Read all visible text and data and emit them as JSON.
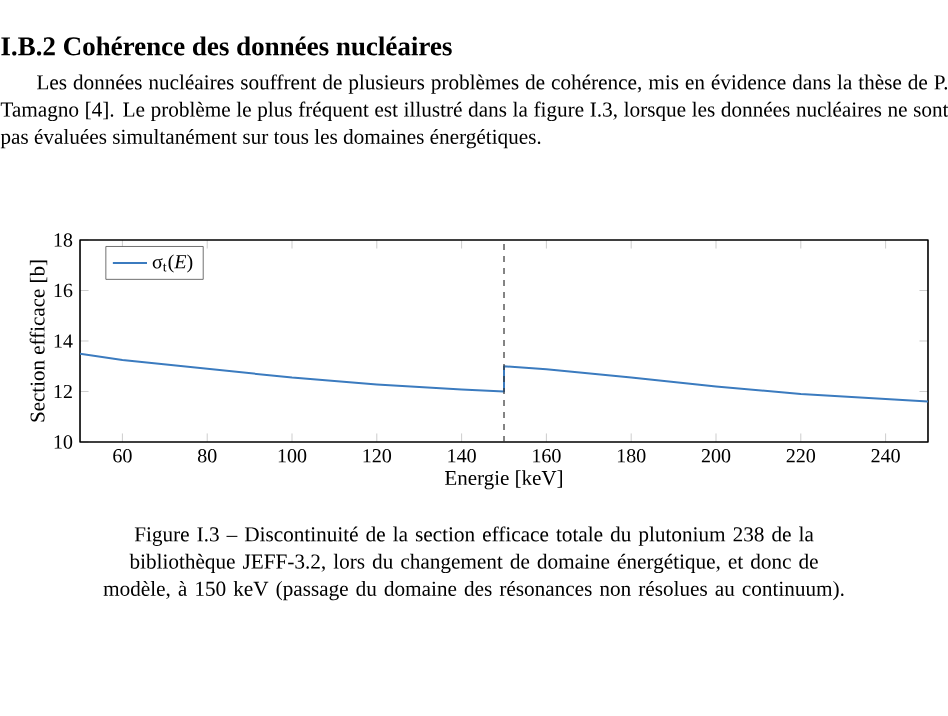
{
  "chart_data": {
    "type": "line",
    "title": "I.B.2    Cohérence des données nucléaires",
    "subtitle": "Les données nucléaires souffrent de plusieurs problèmes de cohérence, mis en évidence dans la thèse de P. Tamagno [4]. Le problème le plus fréquent est illustré dans la figure I.3, lorsque les données nucléaires ne sont pas évaluées simultanément sur tous les domaines énergétiques.",
    "xlabel": "Energie [keV]",
    "ylabel": "Section efficace [b]",
    "annotations": [
      "Figure I.3 – Discontinuité de la section efficace totale du plutonium 238 de la bibliothèque JEFF-3.2, lors du changement de domaine énergétique, et donc de modèle, à 150 keV (passage du domaine des résonances non résolues au continuum)."
    ],
    "x": [
      50,
      60,
      80,
      100,
      120,
      140,
      150,
      150,
      160,
      180,
      200,
      220,
      240,
      250
    ],
    "series": [
      {
        "name": "σ$_{t}$(*E*)",
        "color": "#3b7bbf",
        "values": [
          13.5,
          13.25,
          12.9,
          12.55,
          12.28,
          12.08,
          12.0,
          13.0,
          12.88,
          12.55,
          12.2,
          11.9,
          11.7,
          11.6
        ]
      }
    ],
    "xlim": [
      50,
      250
    ],
    "ylim": [
      10,
      18
    ],
    "xticks": [
      60,
      80,
      100,
      120,
      140,
      160,
      180,
      200,
      220,
      240
    ],
    "yticks": [
      10,
      12,
      14,
      16,
      18
    ],
    "ref_lines": [
      {
        "axis": "x",
        "value": 150,
        "color": "#333333",
        "line_style": "dashed"
      }
    ],
    "grid": false,
    "legend": "top left",
    "marker": "none",
    "line_style": "solid"
  }
}
